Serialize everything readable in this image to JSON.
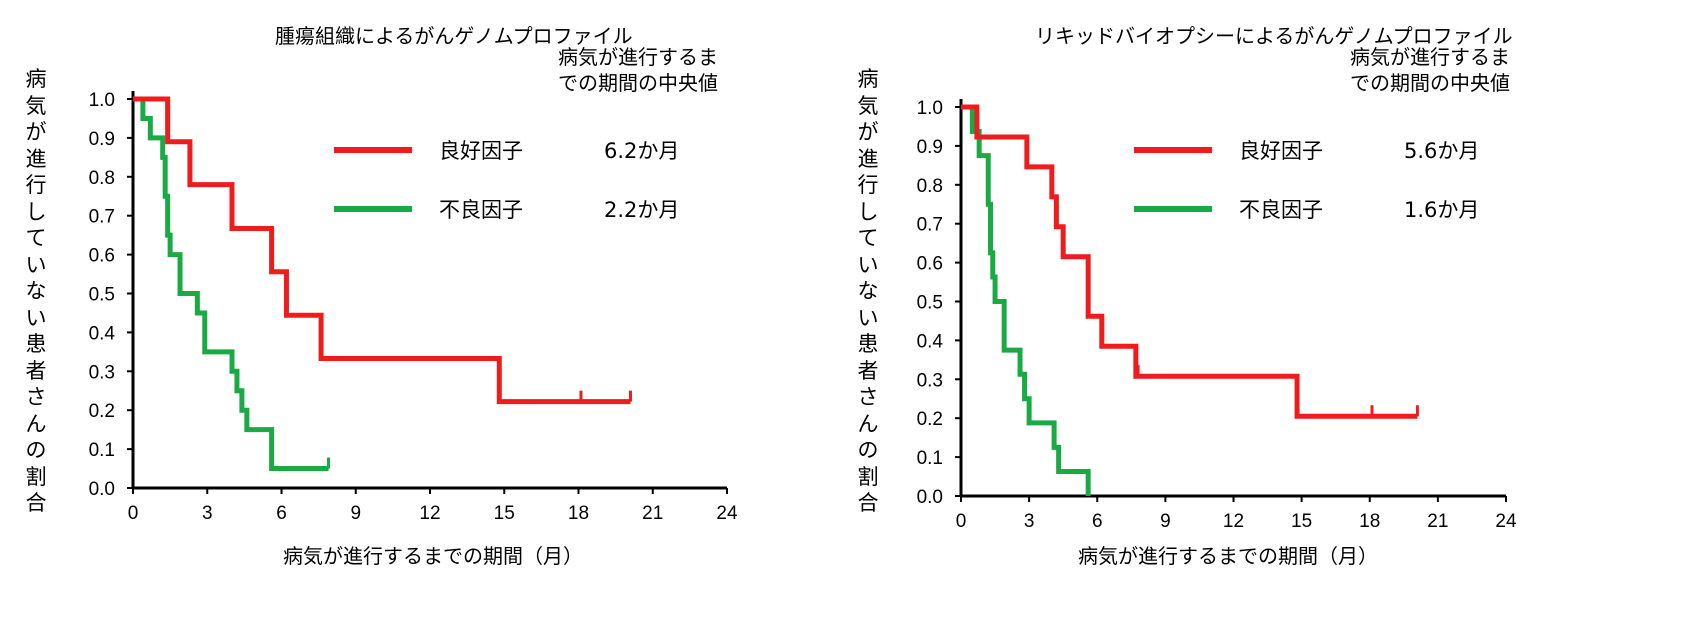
{
  "chart_data": [
    {
      "type": "line",
      "step": true,
      "title": "腫瘍組織によるがんゲノムプロファイル",
      "xlabel": "病気が進行するまでの期間（月）",
      "ylabel": "病気が進行していない患者さんの割合",
      "xlim": [
        0,
        24
      ],
      "ylim": [
        0,
        1.0
      ],
      "xticks": [
        "0",
        "3",
        "6",
        "9",
        "12",
        "15",
        "18",
        "21",
        "24"
      ],
      "yticks": [
        "0.0",
        "0.1",
        "0.2",
        "0.3",
        "0.4",
        "0.5",
        "0.6",
        "0.7",
        "0.8",
        "0.9",
        "1.0"
      ],
      "median_header": [
        "病気が進行するま",
        "での期間の中央値"
      ],
      "series": [
        {
          "name": "良好因子",
          "median": "6.2か月",
          "color": "#ee1c1c",
          "steps": [
            [
              0,
              1.0
            ],
            [
              1.4,
              0.89
            ],
            [
              2.3,
              0.78
            ],
            [
              4.0,
              0.667
            ],
            [
              5.6,
              0.556
            ],
            [
              6.2,
              0.444
            ],
            [
              7.6,
              0.333
            ],
            [
              14.8,
              0.222
            ]
          ],
          "end": 20.1,
          "censored": [
            18.1,
            20.1
          ]
        },
        {
          "name": "不良因子",
          "median": "2.2か月",
          "color": "#1aaa44",
          "steps": [
            [
              0,
              1.0
            ],
            [
              0.4,
              0.95
            ],
            [
              0.7,
              0.9
            ],
            [
              1.2,
              0.85
            ],
            [
              1.3,
              0.75
            ],
            [
              1.4,
              0.65
            ],
            [
              1.5,
              0.6
            ],
            [
              1.9,
              0.5
            ],
            [
              2.6,
              0.45
            ],
            [
              2.9,
              0.35
            ],
            [
              4.0,
              0.3
            ],
            [
              4.2,
              0.25
            ],
            [
              4.4,
              0.2
            ],
            [
              4.6,
              0.15
            ],
            [
              5.6,
              0.05
            ]
          ],
          "end": 7.9,
          "censored": [
            7.9
          ]
        }
      ]
    },
    {
      "type": "line",
      "step": true,
      "title": "リキッドバイオプシーによるがんゲノムプロファイル",
      "xlabel": "病気が進行するまでの期間（月）",
      "ylabel": "病気が進行していない患者さんの割合",
      "xlim": [
        0,
        24
      ],
      "ylim": [
        0,
        1.0
      ],
      "xticks": [
        "0",
        "3",
        "6",
        "9",
        "12",
        "15",
        "18",
        "21",
        "24"
      ],
      "yticks": [
        "0.0",
        "0.1",
        "0.2",
        "0.3",
        "0.4",
        "0.5",
        "0.6",
        "0.7",
        "0.8",
        "0.9",
        "1.0"
      ],
      "median_header": [
        "病気が進行するま",
        "での期間の中央値"
      ],
      "series": [
        {
          "name": "良好因子",
          "median": "5.6か月",
          "color": "#ee1c1c",
          "steps": [
            [
              0,
              1.0
            ],
            [
              0.7,
              0.923
            ],
            [
              2.9,
              0.846
            ],
            [
              4.0,
              0.769
            ],
            [
              4.2,
              0.692
            ],
            [
              4.5,
              0.615
            ],
            [
              5.6,
              0.462
            ],
            [
              6.2,
              0.385
            ],
            [
              7.7,
              0.308
            ],
            [
              14.8,
              0.205
            ]
          ],
          "end": 20.1,
          "censored": [
            7.8,
            18.1,
            20.1
          ]
        },
        {
          "name": "不良因子",
          "median": "1.6か月",
          "color": "#1aaa44",
          "steps": [
            [
              0,
              1.0
            ],
            [
              0.5,
              0.937
            ],
            [
              0.8,
              0.875
            ],
            [
              1.2,
              0.75
            ],
            [
              1.3,
              0.625
            ],
            [
              1.4,
              0.563
            ],
            [
              1.5,
              0.5
            ],
            [
              1.9,
              0.375
            ],
            [
              2.6,
              0.313
            ],
            [
              2.8,
              0.25
            ],
            [
              3.0,
              0.188
            ],
            [
              4.1,
              0.125
            ],
            [
              4.3,
              0.063
            ],
            [
              5.6,
              0.0
            ]
          ],
          "end": 5.6,
          "censored": []
        }
      ]
    }
  ]
}
